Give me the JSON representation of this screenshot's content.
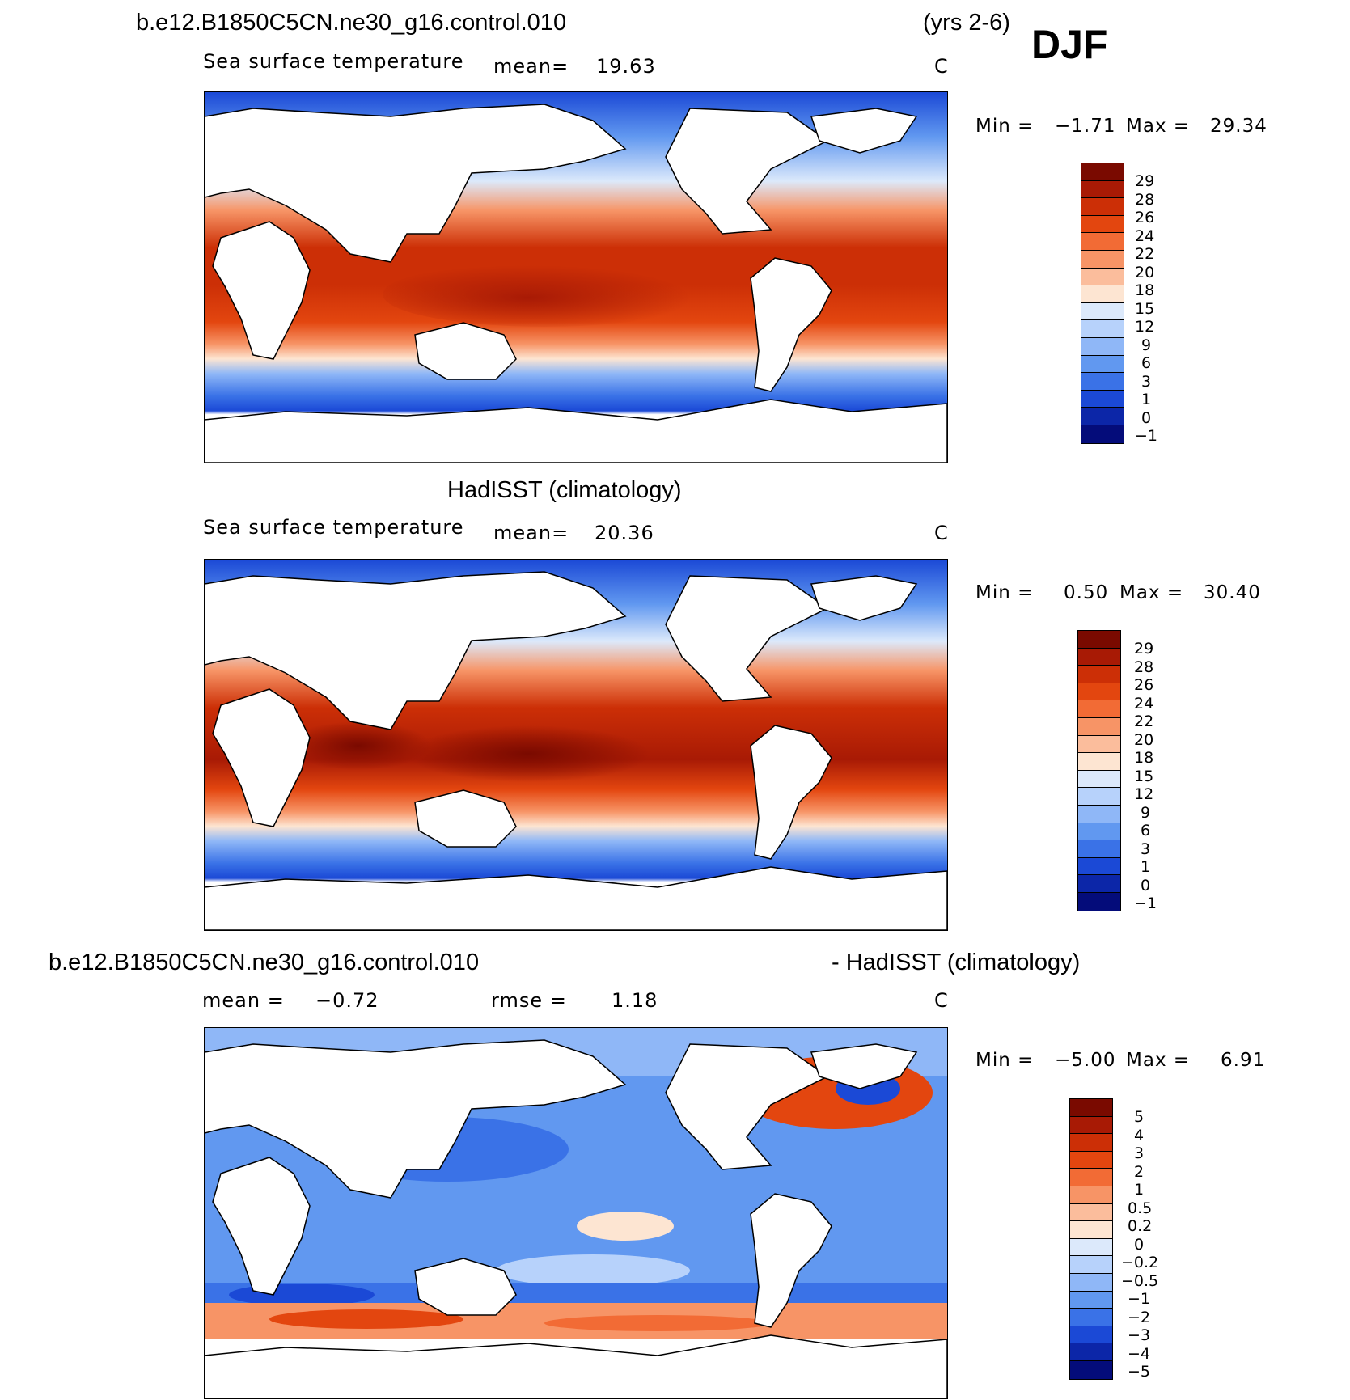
{
  "header": {
    "case_name": "b.e12.B1850C5CN.ne30_g16.control.010",
    "years": "(yrs 2-6)",
    "season": "DJF"
  },
  "panels": [
    {
      "title": "",
      "variable": "Sea surface temperature",
      "mean_label": "mean=",
      "mean_value": "19.63",
      "units": "C",
      "min_label": "Min =",
      "min_value": "−1.71",
      "max_label": "Max =",
      "max_value": "29.34",
      "levels": [
        "29",
        "28",
        "26",
        "24",
        "22",
        "20",
        "18",
        "15",
        "12",
        "9",
        "6",
        "3",
        "1",
        "0",
        "−1"
      ]
    },
    {
      "title": "HadISST (climatology)",
      "variable": "Sea surface temperature",
      "mean_label": "mean=",
      "mean_value": "20.36",
      "units": "C",
      "min_label": "Min =",
      "min_value": "0.50",
      "max_label": "Max =",
      "max_value": "30.40",
      "levels": [
        "29",
        "28",
        "26",
        "24",
        "22",
        "20",
        "18",
        "15",
        "12",
        "9",
        "6",
        "3",
        "1",
        "0",
        "−1"
      ]
    },
    {
      "title_left": "b.e12.B1850C5CN.ne30_g16.control.010",
      "title_right": "- HadISST (climatology)",
      "mean_label": "mean =",
      "mean_value": "−0.72",
      "rmse_label": "rmse =",
      "rmse_value": "1.18",
      "units": "C",
      "min_label": "Min =",
      "min_value": "−5.00",
      "max_label": "Max =",
      "max_value": "6.91",
      "levels": [
        "5",
        "4",
        "3",
        "2",
        "1",
        "0.5",
        "0.2",
        "0",
        "−0.2",
        "−0.5",
        "−1",
        "−2",
        "−3",
        "−4",
        "−5"
      ]
    }
  ],
  "colors": {
    "sst_scale": [
      "#7a0a00",
      "#a81a05",
      "#cc2f06",
      "#e3460f",
      "#f26b35",
      "#f79466",
      "#fbbd9c",
      "#fde5d2",
      "#dce9fb",
      "#b7d2fb",
      "#8fb7f7",
      "#6198f0",
      "#3a72e7",
      "#1b49d6",
      "#0c26a8",
      "#040c7a"
    ],
    "diff_scale": [
      "#7a0a00",
      "#a81a05",
      "#cc2f06",
      "#e3460f",
      "#f26b35",
      "#f79466",
      "#fbbd9c",
      "#fde5d2",
      "#dce9fb",
      "#b7d2fb",
      "#8fb7f7",
      "#6198f0",
      "#3a72e7",
      "#1b49d6",
      "#0c26a8",
      "#040c7a"
    ]
  }
}
